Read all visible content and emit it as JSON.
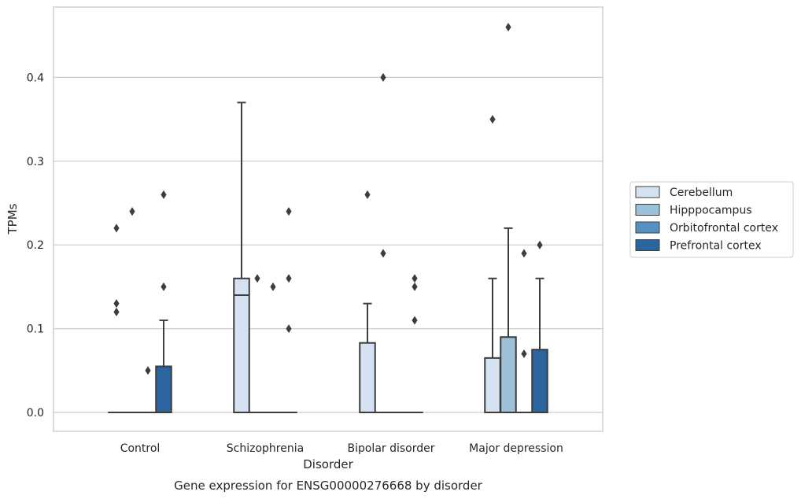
{
  "chart_data": {
    "type": "box",
    "title": "",
    "xlabel": "Disorder",
    "ylabel": "TPMs",
    "caption": "Gene expression for ENSG00000276668 by disorder",
    "categories": [
      "Control",
      "Schizophrenia",
      "Bipolar disorder",
      "Major depression"
    ],
    "ylim": [
      -0.022,
      0.485
    ],
    "yticks": [
      0.0,
      0.1,
      0.2,
      0.3,
      0.4
    ],
    "ytick_labels": [
      "0.0",
      "0.1",
      "0.2",
      "0.3",
      "0.4"
    ],
    "grid": "horizontal",
    "legend_position": "right",
    "series": [
      {
        "name": "Cerebellum",
        "color": "#d4e2f1",
        "boxes": [
          {
            "q1": 0,
            "median": 0,
            "q3": 0,
            "whisker_low": 0,
            "whisker_high": 0,
            "outliers": [
              0.22,
              0.13,
              0.12
            ]
          },
          {
            "q1": 0,
            "median": 0.14,
            "q3": 0.16,
            "whisker_low": 0,
            "whisker_high": 0.37,
            "outliers": []
          },
          {
            "q1": 0,
            "median": 0,
            "q3": 0.083,
            "whisker_low": 0,
            "whisker_high": 0.13,
            "outliers": [
              0.26
            ]
          },
          {
            "q1": 0,
            "median": 0,
            "q3": 0.065,
            "whisker_low": 0,
            "whisker_high": 0.16,
            "outliers": [
              0.35
            ]
          }
        ]
      },
      {
        "name": "Hipppocampus",
        "color": "#9cc1d9",
        "boxes": [
          {
            "q1": 0,
            "median": 0,
            "q3": 0,
            "whisker_low": 0,
            "whisker_high": 0,
            "outliers": [
              0.24
            ]
          },
          {
            "q1": 0,
            "median": 0,
            "q3": 0,
            "whisker_low": 0,
            "whisker_high": 0,
            "outliers": [
              0.16
            ]
          },
          {
            "q1": 0,
            "median": 0,
            "q3": 0,
            "whisker_low": 0,
            "whisker_high": 0,
            "outliers": [
              0.4,
              0.19
            ]
          },
          {
            "q1": 0,
            "median": 0,
            "q3": 0.09,
            "whisker_low": 0,
            "whisker_high": 0.22,
            "outliers": [
              0.46
            ]
          }
        ]
      },
      {
        "name": "Orbitofrontal cortex",
        "color": "#5591c2",
        "boxes": [
          {
            "q1": 0,
            "median": 0,
            "q3": 0,
            "whisker_low": 0,
            "whisker_high": 0,
            "outliers": [
              0.05
            ]
          },
          {
            "q1": 0,
            "median": 0,
            "q3": 0,
            "whisker_low": 0,
            "whisker_high": 0,
            "outliers": [
              0.15
            ]
          },
          {
            "q1": 0,
            "median": 0,
            "q3": 0,
            "whisker_low": 0,
            "whisker_high": 0,
            "outliers": []
          },
          {
            "q1": 0,
            "median": 0,
            "q3": 0,
            "whisker_low": 0,
            "whisker_high": 0,
            "outliers": [
              0.19,
              0.07
            ]
          }
        ]
      },
      {
        "name": "Prefrontal cortex",
        "color": "#2b65a0",
        "boxes": [
          {
            "q1": 0,
            "median": 0,
            "q3": 0.055,
            "whisker_low": 0,
            "whisker_high": 0.11,
            "outliers": [
              0.26,
              0.15
            ]
          },
          {
            "q1": 0,
            "median": 0,
            "q3": 0,
            "whisker_low": 0,
            "whisker_high": 0,
            "outliers": [
              0.24,
              0.16,
              0.1
            ]
          },
          {
            "q1": 0,
            "median": 0,
            "q3": 0,
            "whisker_low": 0,
            "whisker_high": 0,
            "outliers": [
              0.16,
              0.15,
              0.11
            ]
          },
          {
            "q1": 0,
            "median": 0,
            "q3": 0.075,
            "whisker_low": 0,
            "whisker_high": 0.16,
            "outliers": [
              0.2
            ]
          }
        ]
      }
    ]
  }
}
